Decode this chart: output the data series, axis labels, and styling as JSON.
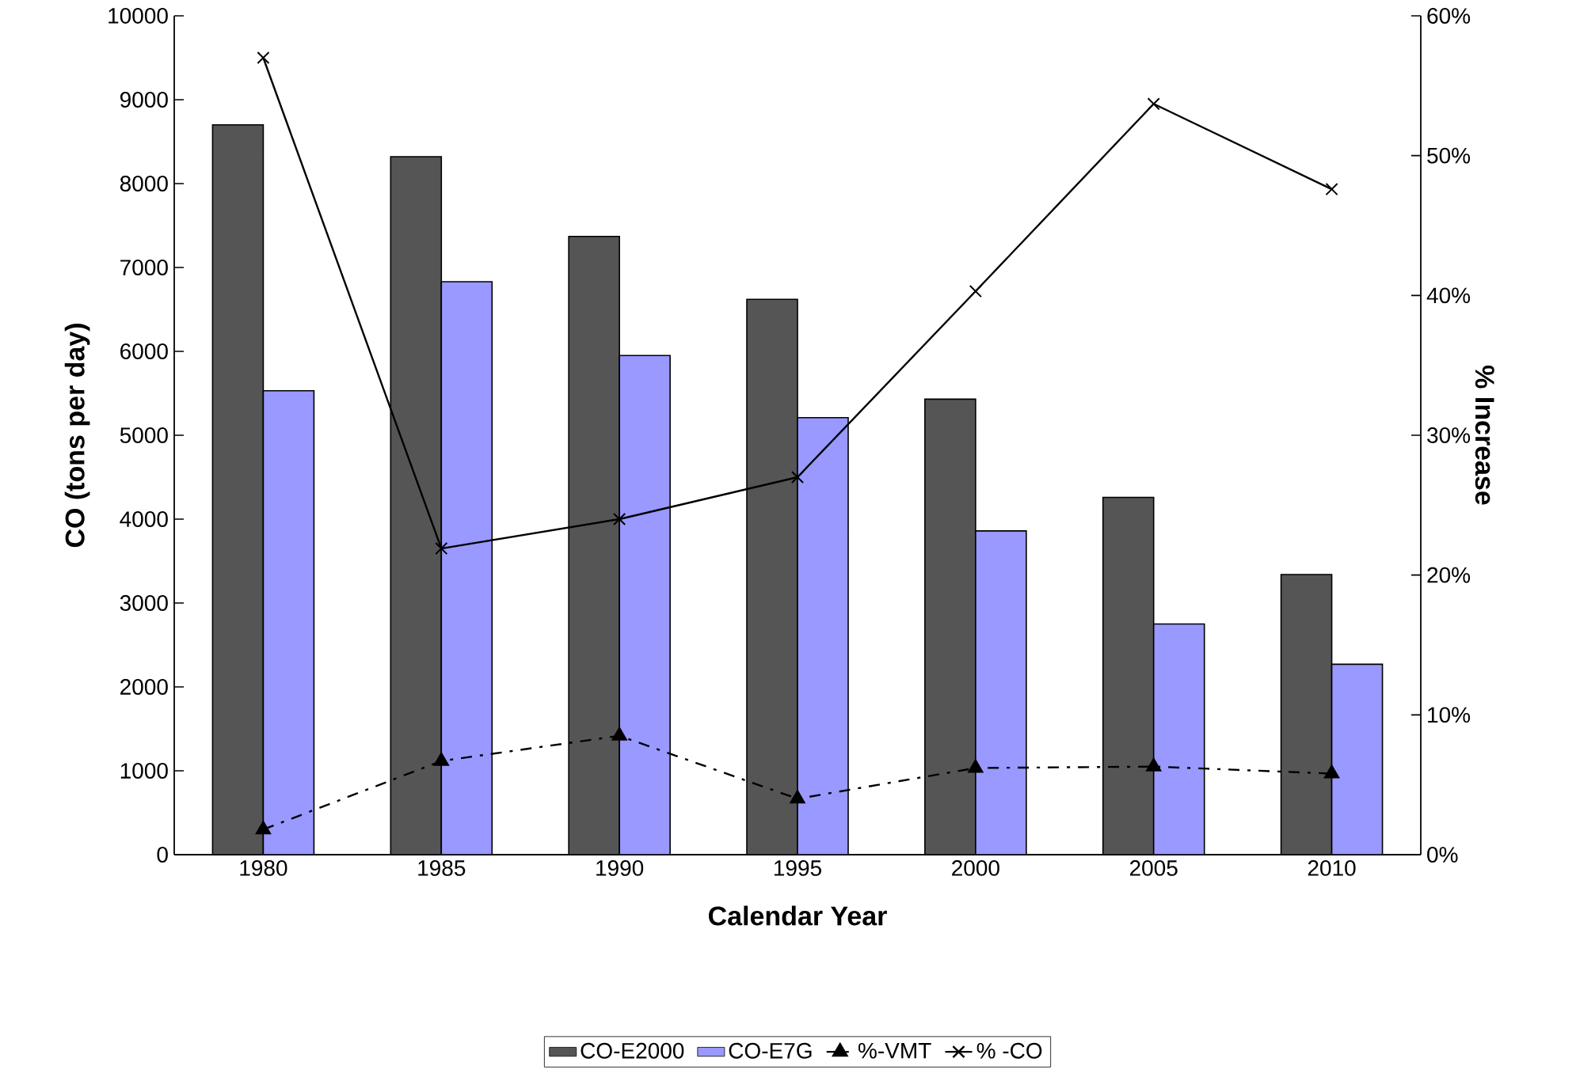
{
  "chart_data": {
    "type": "bar",
    "xlabel": "Calendar Year",
    "ylabel": "CO (tons per day)",
    "y2label": "% Increase",
    "categories": [
      "1980",
      "1985",
      "1990",
      "1995",
      "2000",
      "2005",
      "2010"
    ],
    "series": [
      {
        "name": "CO-E2000",
        "color": "#555555",
        "values": [
          8700,
          8320,
          7370,
          6620,
          5430,
          4260,
          3340
        ]
      },
      {
        "name": "CO-E7G",
        "color": "#9999ff",
        "values": [
          5530,
          6830,
          5950,
          5210,
          3860,
          2750,
          2270
        ]
      },
      {
        "name": "%-VMT",
        "type": "line",
        "axis": "y2",
        "color": "#000000",
        "marker": "triangle",
        "line_style": "dashed",
        "values": [
          1.8,
          6.7,
          8.5,
          4.0,
          6.2,
          6.3,
          5.8
        ]
      },
      {
        "name": "% -CO",
        "type": "line",
        "axis": "y2",
        "color": "#000000",
        "marker": "cross",
        "line_style": "solid",
        "values": [
          57.0,
          21.9,
          24.0,
          27.0,
          40.3,
          53.7,
          47.6
        ]
      }
    ],
    "ylim": [
      0,
      10000
    ],
    "yticks": [
      0,
      1000,
      2000,
      3000,
      4000,
      5000,
      6000,
      7000,
      8000,
      9000,
      10000
    ],
    "y2lim": [
      0,
      60
    ],
    "y2ticks": [
      {
        "value": 0,
        "label": "0%"
      },
      {
        "value": 10,
        "label": "10%"
      },
      {
        "value": 20,
        "label": "20%"
      },
      {
        "value": 30,
        "label": "30%"
      },
      {
        "value": 40,
        "label": "40%"
      },
      {
        "value": 50,
        "label": "50%"
      },
      {
        "value": 60,
        "label": "60%"
      }
    ],
    "grid": false,
    "legend": "bottom"
  }
}
